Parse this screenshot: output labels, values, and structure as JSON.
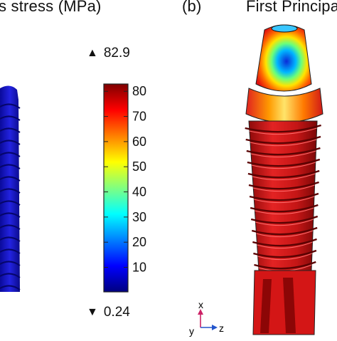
{
  "panels": {
    "left_title": "s stress (MPa)",
    "right_label": "(b)",
    "right_title": "First Principa"
  },
  "colorbar": {
    "max_label": "82.9",
    "min_label": "0.24",
    "ticks": [
      "80",
      "70",
      "60",
      "50",
      "40",
      "30",
      "20",
      "10"
    ],
    "tick_values": [
      80,
      70,
      60,
      50,
      40,
      30,
      20,
      10
    ],
    "range": [
      0.24,
      82.9
    ],
    "colormap": [
      "#00007f",
      "#0000ff",
      "#0080ff",
      "#00ffff",
      "#80ff80",
      "#ffff00",
      "#ff8000",
      "#ff0000",
      "#7f0000"
    ]
  },
  "axis_triad": {
    "x_label": "x",
    "y_label": "y",
    "z_label": "z",
    "x_color": "#cc2266",
    "z_color": "#2255cc"
  },
  "icons": {
    "max_marker": "▲",
    "min_marker": "▼"
  },
  "colors": {
    "left_implant": "#1a1ad4",
    "right_implant": "#d41e1e"
  }
}
